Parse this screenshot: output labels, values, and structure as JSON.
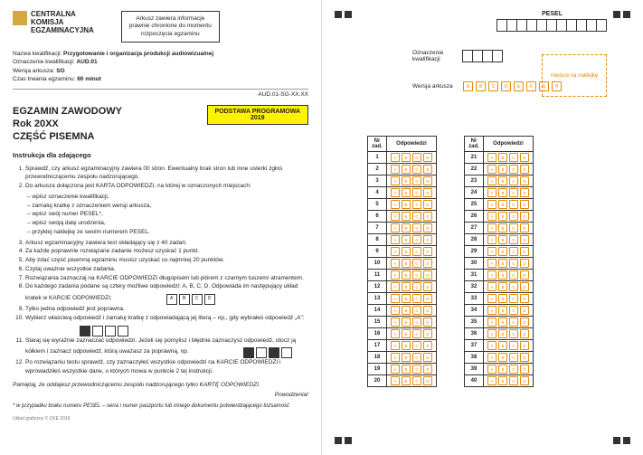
{
  "logo": {
    "line1": "CENTRALNA",
    "line2": "KOMISJA",
    "line3": "EGZAMINACYJNA"
  },
  "infobox": {
    "l1": "Arkusz zawiera informacje",
    "l2": "prawnie chronione do momentu",
    "l3": "rozpoczęcia egzaminu"
  },
  "meta": {
    "nazwa_lbl": "Nazwa kwalifikacji:",
    "nazwa_val": "Przygotowanie i organizacja produkcji audiowizualnej",
    "ozn_lbl": "Oznaczenie kwalifikacji:",
    "ozn_val": "AUD.01",
    "wer_lbl": "Wersja arkusza:",
    "wer_val": "SG",
    "czas_lbl": "Czas trwania egzaminu:",
    "czas_val": "60 minut"
  },
  "code": "AUD.01-SG-XX.XX",
  "title": {
    "l1": "EGZAMIN ZAWODOWY",
    "l2": "Rok 20XX",
    "l3": "CZĘŚĆ PISEMNA"
  },
  "yellow": {
    "l1": "PODSTAWA PROGRAMOWA",
    "l2": "2019"
  },
  "instr_h": "Instrukcja dla zdającego",
  "instr": [
    "Sprawdź, czy arkusz egzaminacyjny zawiera 00 stron. Ewentualny brak stron lub inne usterki zgłoś przewodniczącemu zespołu nadzorującego.",
    "Do arkusza dołączona jest KARTA ODPOWIEDZI, na której w oznaczonych miejscach:",
    "Arkusz egzaminacyjny zawiera test składający się z 40 zadań.",
    "Za każde poprawnie rozwiązane zadanie możesz uzyskać 1 punkt.",
    "Aby zdać część pisemną egzaminu musisz uzyskać co najmniej 20 punktów.",
    "Czytaj uważnie wszystkie zadania.",
    "Rozwiązania zaznaczaj na KARCIE ODPOWIEDZI długopisem lub piórem z czarnym tuszem/ atramentem.",
    "Do każdego zadania podane są cztery możliwe odpowiedzi: A, B, C, D. Odpowiada im następujący układ kratek w KARCIE ODPOWIEDZI:",
    "Tylko jedna odpowiedź jest poprawna.",
    "Wybierz właściwą odpowiedź i zamaluj kratkę z odpowiadającą jej literą – np., gdy wybrałeś odpowiedź „A\":",
    "Staraj się wyraźnie zaznaczać odpowiedzi. Jeżeli się pomylisz i błędnie zaznaczysz odpowiedź, otocz ją kółkiem i zaznacz odpowiedź, którą uważasz za poprawną, np.",
    "Po rozwiązaniu testu sprawdź, czy zaznaczyłeś wszystkie odpowiedzi na KARCIE ODPOWIEDZI i wprowadziłeś wszystkie dane, o których mowa w punkcie 2 tej instrukcji."
  ],
  "sub2": [
    "wpisz oznaczenie kwalifikacji,",
    "zamaluj kratkę z oznaczeniem wersji arkusza,",
    "wpisz swój numer PESEL*,",
    "wpisz swoją datę urodzenia,",
    "przyklej naklejkę ze swoim numerem PESEL."
  ],
  "remember": "Pamiętaj, że oddajesz przewodniczącemu zespołu nadzorującego tylko KARTĘ ODPOWIEDZI.",
  "sig": "Powodzenia!",
  "footnote": "* w przypadku braku numeru PESEL – seria i numer paszportu lub innego dokumentu potwierdzającego tożsamość",
  "foot": "Układ graficzny © CKE 2019",
  "right": {
    "pesel": "PESEL",
    "oznacz": "Oznaczenie kwalifikacji",
    "wersja": "Wersja arkusza",
    "wer_opts": [
      "A",
      "B",
      "C",
      "D",
      "E",
      "F",
      "G",
      "H"
    ],
    "sticker": "miejsce na naklejkę",
    "hdr1": "Nr zad.",
    "hdr2": "Odpowiedzi",
    "opts": [
      "A",
      "B",
      "C",
      "D"
    ],
    "col1": [
      1,
      2,
      3,
      4,
      5,
      6,
      7,
      8,
      9,
      10,
      11,
      12,
      13,
      14,
      15,
      16,
      17,
      18,
      19,
      20
    ],
    "col2": [
      21,
      22,
      23,
      24,
      25,
      26,
      27,
      28,
      29,
      30,
      31,
      32,
      33,
      34,
      35,
      36,
      37,
      38,
      39,
      40
    ]
  },
  "colors": {
    "yellow": "#fff200",
    "orange": "#e68a00",
    "logo": "#d4a843"
  }
}
